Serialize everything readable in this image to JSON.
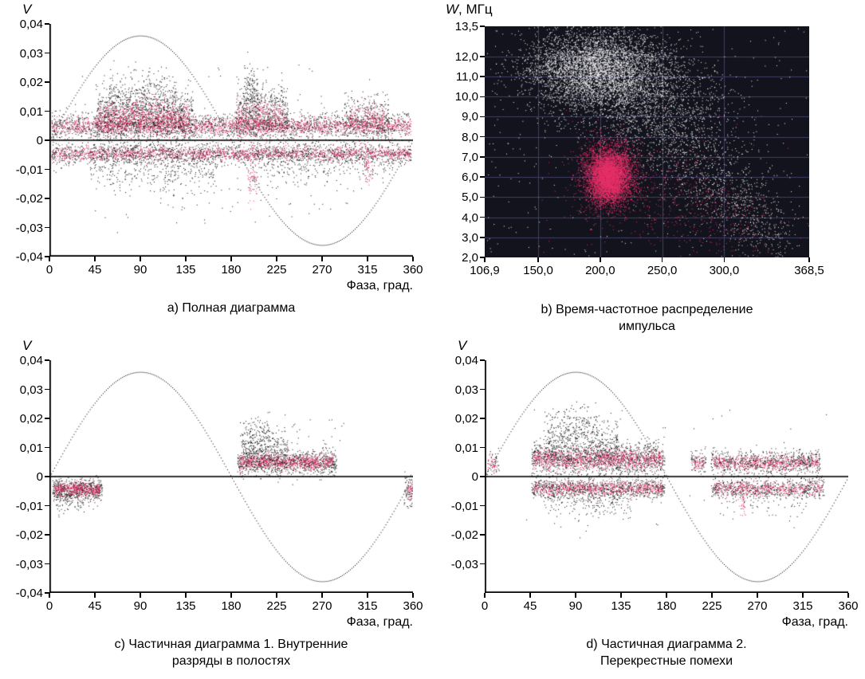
{
  "figure": {
    "background": "#ffffff",
    "point_colors": {
      "black": "#0d0d0d",
      "pink": "#e73069",
      "white": "#fafafa"
    },
    "panels": {
      "a": {
        "y_axis_title_em": "V",
        "y_axis_title_rest": "",
        "x_axis_title": "Фаза, град.",
        "caption_line1": "a) Полная диаграмма",
        "caption_line2": ""
      },
      "b": {
        "y_axis_title_em": "W",
        "y_axis_title_rest": ", МГц",
        "x_axis_title": "",
        "caption_line1": "b) Время-частотное распределение",
        "caption_line2": "импульса"
      },
      "c": {
        "y_axis_title_em": "V",
        "y_axis_title_rest": "",
        "x_axis_title": "Фаза, град.",
        "caption_line1": "c) Частичная диаграмма 1. Внутренние",
        "caption_line2": "разряды в полостях"
      },
      "d": {
        "y_axis_title_em": "V",
        "y_axis_title_rest": "",
        "x_axis_title": "Фаза, град.",
        "caption_line1": "d) Частичная диаграмма 2.",
        "caption_line2": "Перекрестные помехи"
      }
    }
  },
  "chart_data": [
    {
      "id": "a",
      "type": "scatter",
      "title": "a) Полная диаграмма",
      "xlabel": "Фаза, град.",
      "ylabel": "V",
      "x_range": [
        0,
        360
      ],
      "y_range": [
        -0.04,
        0.04
      ],
      "background": "#ffffff",
      "axes": true,
      "zero_line": true,
      "seed": 7,
      "sine": {
        "amplitude": 0.036,
        "period_deg": 360,
        "style": "dotted",
        "color": "#000000"
      },
      "x_ticks": [
        {
          "v": 0,
          "label": "0"
        },
        {
          "v": 45,
          "label": "45"
        },
        {
          "v": 90,
          "label": "90"
        },
        {
          "v": 135,
          "label": "135"
        },
        {
          "v": 180,
          "label": "180"
        },
        {
          "v": 225,
          "label": "225"
        },
        {
          "v": 270,
          "label": "270"
        },
        {
          "v": 315,
          "label": "315"
        },
        {
          "v": 360,
          "label": "360"
        }
      ],
      "y_ticks": [
        {
          "v": 0.04,
          "label": "0,04"
        },
        {
          "v": 0.03,
          "label": "0,03"
        },
        {
          "v": 0.02,
          "label": "0,02"
        },
        {
          "v": 0.01,
          "label": "0,01"
        },
        {
          "v": 0,
          "label": "0"
        },
        {
          "v": -0.01,
          "label": "-0,01"
        },
        {
          "v": -0.02,
          "label": "-0,02"
        },
        {
          "v": -0.03,
          "label": "-0,03"
        },
        {
          "v": -0.04,
          "label": "-0,04"
        }
      ],
      "clusters": [
        {
          "n": 2000,
          "x": [
            2,
            358
          ],
          "cy": 0.005,
          "sy": 0.0022,
          "color": "black",
          "size": 1
        },
        {
          "n": 1700,
          "x": [
            2,
            358
          ],
          "cy": 0.005,
          "sy": 0.0014,
          "color": "pink",
          "size": 1
        },
        {
          "n": 1700,
          "x": [
            2,
            358
          ],
          "cy": -0.0045,
          "sy": 0.0018,
          "color": "black",
          "size": 1
        },
        {
          "n": 1400,
          "x": [
            2,
            358
          ],
          "cy": -0.0045,
          "sy": 0.0012,
          "color": "pink",
          "size": 1
        },
        {
          "n": 1100,
          "x": [
            46,
            142
          ],
          "cy": 0.009,
          "sy": 0.0045,
          "color": "black",
          "size": 1
        },
        {
          "n": 750,
          "x": [
            48,
            138
          ],
          "cy": 0.008,
          "sy": 0.0028,
          "color": "pink",
          "size": 1
        },
        {
          "n": 260,
          "x": [
            58,
            125
          ],
          "cy": 0.016,
          "sy": 0.004,
          "color": "black",
          "size": 1
        },
        {
          "n": 520,
          "x": [
            184,
            236
          ],
          "cy": 0.01,
          "sy": 0.005,
          "color": "black",
          "size": 1
        },
        {
          "n": 330,
          "x": [
            186,
            232
          ],
          "cy": 0.008,
          "sy": 0.003,
          "color": "pink",
          "size": 1
        },
        {
          "n": 130,
          "x": [
            192,
            206
          ],
          "cy": 0.017,
          "sy": 0.005,
          "color": "black",
          "size": 1
        },
        {
          "n": 280,
          "x": [
            292,
            336
          ],
          "cy": 0.008,
          "sy": 0.004,
          "color": "black",
          "size": 1
        },
        {
          "n": 170,
          "x": [
            296,
            332
          ],
          "cy": 0.0075,
          "sy": 0.0025,
          "color": "pink",
          "size": 1
        },
        {
          "n": 420,
          "x": [
            40,
            165
          ],
          "cy": -0.009,
          "sy": 0.004,
          "color": "black",
          "size": 1
        },
        {
          "n": 260,
          "x": [
            200,
            340
          ],
          "cy": -0.0085,
          "sy": 0.0035,
          "color": "black",
          "size": 1
        },
        {
          "n": 90,
          "x": [
            55,
            310
          ],
          "cy": -0.017,
          "sy": 0.006,
          "color": "black",
          "size": 1
        },
        {
          "n": 70,
          "x": [
            196,
            205
          ],
          "cy": -0.011,
          "sy": 0.005,
          "color": "pink",
          "size": 1
        },
        {
          "n": 55,
          "x": [
            312,
            320
          ],
          "cy": -0.008,
          "sy": 0.0035,
          "color": "pink",
          "size": 1
        },
        {
          "n": 60,
          "x": [
            2,
            358
          ],
          "y": [
            -0.028,
            0.026
          ],
          "color": "black",
          "size": 1
        }
      ]
    },
    {
      "id": "b",
      "type": "scatter",
      "title": "b) Время-частотное распределение импульса",
      "xlabel": "",
      "ylabel": "W, МГц",
      "x_range": [
        106.9,
        368.5
      ],
      "y_range": [
        2.0,
        13.5
      ],
      "background": "#13131d",
      "axes": false,
      "zero_line": false,
      "seed": 11,
      "grid": {
        "x_values": [
          150,
          200,
          250,
          300
        ],
        "y_values": [
          3,
          4,
          5,
          6,
          7,
          8,
          9,
          10,
          11,
          12
        ],
        "color": "#3f3f63"
      },
      "x_ticks": [
        {
          "v": 106.9,
          "label": "106,9"
        },
        {
          "v": 150,
          "label": "150,0"
        },
        {
          "v": 200,
          "label": "200,0"
        },
        {
          "v": 250,
          "label": "250,0"
        },
        {
          "v": 300,
          "label": "300,0"
        },
        {
          "v": 368.5,
          "label": "368,5"
        }
      ],
      "y_ticks": [
        {
          "v": 13.5,
          "label": "13,5"
        },
        {
          "v": 12,
          "label": "12,0"
        },
        {
          "v": 11,
          "label": "11,0"
        },
        {
          "v": 10,
          "label": "10,0"
        },
        {
          "v": 9,
          "label": "9,0"
        },
        {
          "v": 8,
          "label": "8,0"
        },
        {
          "v": 7,
          "label": "7,0"
        },
        {
          "v": 6,
          "label": "6,0"
        },
        {
          "v": 5,
          "label": "5,0"
        },
        {
          "v": 4,
          "label": "4,0"
        },
        {
          "v": 3,
          "label": "3,0"
        },
        {
          "v": 2,
          "label": "2,0"
        }
      ],
      "clusters": [
        {
          "n": 4200,
          "cx": 196,
          "sx": 28,
          "cy": 11.5,
          "sy": 0.95,
          "color": "white",
          "size": 1
        },
        {
          "n": 1600,
          "cx": 228,
          "sx": 34,
          "cy": 10.2,
          "sy": 1.1,
          "color": "white",
          "size": 1
        },
        {
          "n": 600,
          "cx": 258,
          "sx": 26,
          "cy": 8.3,
          "sy": 1.1,
          "color": "white",
          "size": 1
        },
        {
          "n": 380,
          "cx": 288,
          "sx": 22,
          "cy": 6.2,
          "sy": 1.1,
          "color": "white",
          "size": 1
        },
        {
          "n": 260,
          "cx": 312,
          "sx": 18,
          "cy": 4.6,
          "sy": 0.9,
          "color": "white",
          "size": 1
        },
        {
          "n": 150,
          "cx": 332,
          "sx": 14,
          "cy": 3.3,
          "sy": 0.7,
          "color": "white",
          "size": 1
        },
        {
          "n": 350,
          "x": [
            108,
            367
          ],
          "y": [
            2.05,
            13.45
          ],
          "color": "white",
          "size": 1
        },
        {
          "n": 3800,
          "cx": 207,
          "sx": 11,
          "cy": 6.1,
          "sy": 0.8,
          "color": "pink",
          "size": 1
        },
        {
          "n": 2200,
          "cx": 206,
          "sx": 6.5,
          "cy": 6.0,
          "sy": 0.55,
          "color": "pink",
          "size": 1
        },
        {
          "n": 300,
          "cx": 255,
          "sx": 30,
          "cy": 5.2,
          "sy": 1.2,
          "color": "pink",
          "size": 1
        },
        {
          "n": 160,
          "cx": 300,
          "sx": 22,
          "cy": 3.9,
          "sy": 0.9,
          "color": "pink",
          "size": 1
        },
        {
          "n": 120,
          "x": [
            150,
            340
          ],
          "y": [
            2.2,
            9.5
          ],
          "color": "pink",
          "size": 1
        }
      ]
    },
    {
      "id": "c",
      "type": "scatter",
      "title": "c) Частичная диаграмма 1. Внутренние разряды в полостях",
      "xlabel": "Фаза, град.",
      "ylabel": "V",
      "x_range": [
        0,
        360
      ],
      "y_range": [
        -0.04,
        0.04
      ],
      "background": "#ffffff",
      "axes": true,
      "zero_line": true,
      "seed": 13,
      "sine": {
        "amplitude": 0.036,
        "period_deg": 360,
        "style": "dotted",
        "color": "#000000"
      },
      "x_ticks": [
        {
          "v": 0,
          "label": "0"
        },
        {
          "v": 45,
          "label": "45"
        },
        {
          "v": 90,
          "label": "90"
        },
        {
          "v": 135,
          "label": "135"
        },
        {
          "v": 180,
          "label": "180"
        },
        {
          "v": 225,
          "label": "225"
        },
        {
          "v": 270,
          "label": "270"
        },
        {
          "v": 315,
          "label": "315"
        },
        {
          "v": 360,
          "label": "360"
        }
      ],
      "y_ticks": [
        {
          "v": 0.04,
          "label": "0,04"
        },
        {
          "v": 0.03,
          "label": "0,03"
        },
        {
          "v": 0.02,
          "label": "0,02"
        },
        {
          "v": 0.01,
          "label": "0,01"
        },
        {
          "v": 0,
          "label": "0"
        },
        {
          "v": -0.01,
          "label": "-0,01"
        },
        {
          "v": -0.02,
          "label": "-0,02"
        },
        {
          "v": -0.03,
          "label": "-0,03"
        },
        {
          "v": -0.04,
          "label": "-0,04"
        }
      ],
      "clusters": [
        {
          "n": 600,
          "x": [
            3,
            52
          ],
          "cy": -0.0045,
          "sy": 0.0018,
          "color": "black",
          "size": 1
        },
        {
          "n": 420,
          "x": [
            4,
            50
          ],
          "cy": -0.0043,
          "sy": 0.0011,
          "color": "pink",
          "size": 1
        },
        {
          "n": 70,
          "x": [
            3,
            34
          ],
          "cy": -0.0085,
          "sy": 0.002,
          "color": "black",
          "size": 1
        },
        {
          "n": 950,
          "x": [
            186,
            284
          ],
          "cy": 0.0052,
          "sy": 0.0022,
          "color": "black",
          "size": 1
        },
        {
          "n": 700,
          "x": [
            188,
            280
          ],
          "cy": 0.005,
          "sy": 0.0014,
          "color": "pink",
          "size": 1
        },
        {
          "n": 300,
          "x": [
            190,
            235
          ],
          "cy": 0.0095,
          "sy": 0.0035,
          "color": "black",
          "size": 1
        },
        {
          "n": 90,
          "x": [
            192,
            218
          ],
          "cy": 0.0155,
          "sy": 0.0032,
          "color": "black",
          "size": 1
        },
        {
          "n": 70,
          "x": [
            351,
            360
          ],
          "cy": -0.0055,
          "sy": 0.0032,
          "color": "black",
          "size": 1
        },
        {
          "n": 45,
          "x": [
            354,
            360
          ],
          "cy": -0.0045,
          "sy": 0.0018,
          "color": "pink",
          "size": 1
        },
        {
          "n": 25,
          "x": [
            186,
            300
          ],
          "y": [
            0.012,
            0.02
          ],
          "color": "black",
          "size": 1
        }
      ]
    },
    {
      "id": "d",
      "type": "scatter",
      "title": "d) Частичная диаграмма 2. Перекрестные помехи",
      "xlabel": "Фаза, град.",
      "ylabel": "V",
      "x_range": [
        0,
        360
      ],
      "y_range": [
        -0.04,
        0.04
      ],
      "background": "#ffffff",
      "axes": true,
      "zero_line": true,
      "seed": 17,
      "sine": {
        "amplitude": 0.036,
        "period_deg": 360,
        "style": "dotted",
        "color": "#000000"
      },
      "x_ticks": [
        {
          "v": 0,
          "label": "0"
        },
        {
          "v": 45,
          "label": "45"
        },
        {
          "v": 90,
          "label": "90"
        },
        {
          "v": 135,
          "label": "135"
        },
        {
          "v": 180,
          "label": "180"
        },
        {
          "v": 225,
          "label": "225"
        },
        {
          "v": 270,
          "label": "270"
        },
        {
          "v": 315,
          "label": "315"
        },
        {
          "v": 360,
          "label": "360"
        }
      ],
      "y_ticks": [
        {
          "v": 0.04,
          "label": "0,04"
        },
        {
          "v": 0.03,
          "label": "0,03"
        },
        {
          "v": 0.02,
          "label": "0,02"
        },
        {
          "v": 0.01,
          "label": "0,01"
        },
        {
          "v": 0,
          "label": "0"
        },
        {
          "v": -0.01,
          "label": "-0,01"
        },
        {
          "v": -0.02,
          "label": "-0,02"
        },
        {
          "v": -0.03,
          "label": "-0,03"
        }
      ],
      "clusters": [
        {
          "n": 1300,
          "x": [
            46,
            178
          ],
          "cy": 0.0062,
          "sy": 0.0028,
          "color": "black",
          "size": 1
        },
        {
          "n": 950,
          "x": [
            48,
            176
          ],
          "cy": 0.006,
          "sy": 0.0018,
          "color": "pink",
          "size": 1
        },
        {
          "n": 420,
          "x": [
            58,
            132
          ],
          "cy": 0.0115,
          "sy": 0.0045,
          "color": "black",
          "size": 1
        },
        {
          "n": 150,
          "x": [
            62,
            112
          ],
          "cy": 0.018,
          "sy": 0.0035,
          "color": "black",
          "size": 1
        },
        {
          "n": 850,
          "x": [
            46,
            178
          ],
          "cy": -0.004,
          "sy": 0.0018,
          "color": "black",
          "size": 1
        },
        {
          "n": 600,
          "x": [
            48,
            176
          ],
          "cy": -0.004,
          "sy": 0.0012,
          "color": "pink",
          "size": 1
        },
        {
          "n": 220,
          "x": [
            58,
            145
          ],
          "cy": -0.0085,
          "sy": 0.0035,
          "color": "black",
          "size": 1
        },
        {
          "n": 750,
          "x": [
            224,
            332
          ],
          "cy": 0.005,
          "sy": 0.002,
          "color": "black",
          "size": 1
        },
        {
          "n": 520,
          "x": [
            226,
            330
          ],
          "cy": 0.0048,
          "sy": 0.0013,
          "color": "pink",
          "size": 1
        },
        {
          "n": 600,
          "x": [
            224,
            336
          ],
          "cy": -0.004,
          "sy": 0.0018,
          "color": "black",
          "size": 1
        },
        {
          "n": 400,
          "x": [
            226,
            334
          ],
          "cy": -0.004,
          "sy": 0.0012,
          "color": "pink",
          "size": 1
        },
        {
          "n": 85,
          "x": [
            204,
            219
          ],
          "cy": 0.005,
          "sy": 0.002,
          "color": "black",
          "size": 1
        },
        {
          "n": 55,
          "x": [
            206,
            217
          ],
          "cy": 0.0048,
          "sy": 0.0013,
          "color": "pink",
          "size": 1
        },
        {
          "n": 45,
          "x": [
            2,
            14
          ],
          "cy": 0.0045,
          "sy": 0.002,
          "color": "black",
          "size": 1
        },
        {
          "n": 30,
          "x": [
            3,
            12
          ],
          "cy": 0.0045,
          "sy": 0.0013,
          "color": "pink",
          "size": 1
        },
        {
          "n": 70,
          "x": [
            230,
            320
          ],
          "cy": -0.009,
          "sy": 0.003,
          "color": "black",
          "size": 1
        },
        {
          "n": 40,
          "x": [
            252,
            258
          ],
          "cy": -0.008,
          "sy": 0.004,
          "color": "pink",
          "size": 1
        },
        {
          "n": 40,
          "x": [
            40,
            340
          ],
          "y": [
            -0.018,
            0.024
          ],
          "color": "black",
          "size": 1
        }
      ]
    }
  ]
}
